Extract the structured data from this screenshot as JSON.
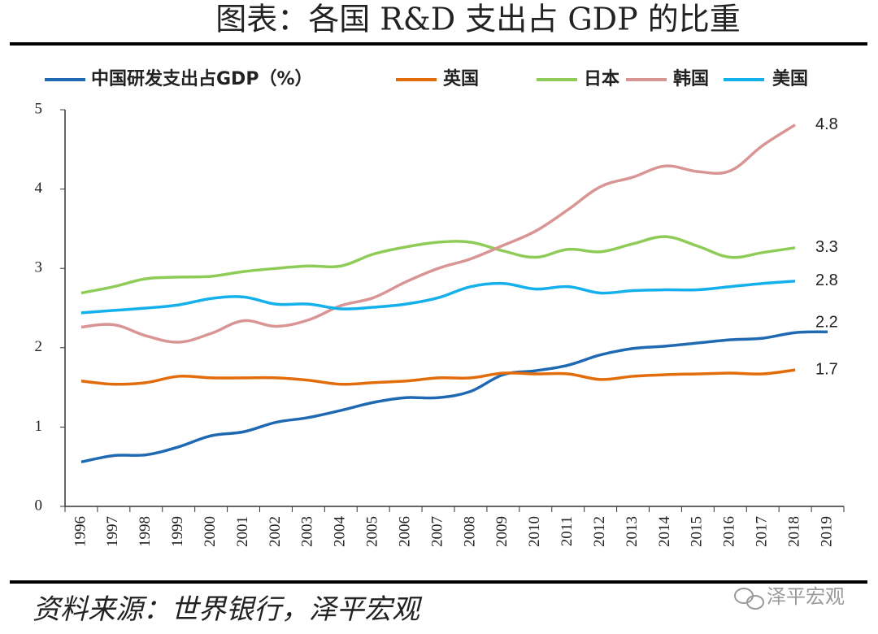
{
  "chart_data": {
    "type": "line",
    "title": "图表：各国 R&D 支出占 GDP 的比重",
    "categories": [
      "1996",
      "1997",
      "1998",
      "1999",
      "2000",
      "2001",
      "2002",
      "2003",
      "2004",
      "2005",
      "2006",
      "2007",
      "2008",
      "2009",
      "2010",
      "2011",
      "2012",
      "2013",
      "2014",
      "2015",
      "2016",
      "2017",
      "2018",
      "2019"
    ],
    "series": [
      {
        "name": "中国研发支出占GDP（%）",
        "color": "#1f69b3",
        "values": [
          0.56,
          0.64,
          0.65,
          0.75,
          0.89,
          0.94,
          1.06,
          1.12,
          1.21,
          1.31,
          1.37,
          1.37,
          1.45,
          1.66,
          1.71,
          1.78,
          1.91,
          1.99,
          2.02,
          2.06,
          2.1,
          2.12,
          2.19,
          2.2
        ],
        "value_labels": [
          null,
          null,
          null,
          null,
          null,
          null,
          null,
          null,
          null,
          null,
          null,
          null,
          null,
          null,
          null,
          null,
          null,
          null,
          null,
          null,
          null,
          null,
          null,
          "2.2"
        ]
      },
      {
        "name": "英国",
        "color": "#e36c0a",
        "values": [
          1.58,
          1.54,
          1.56,
          1.64,
          1.62,
          1.62,
          1.62,
          1.59,
          1.54,
          1.56,
          1.58,
          1.62,
          1.62,
          1.68,
          1.67,
          1.67,
          1.6,
          1.64,
          1.66,
          1.67,
          1.68,
          1.67,
          1.72,
          null
        ],
        "value_labels": [
          null,
          null,
          null,
          null,
          null,
          null,
          null,
          null,
          null,
          null,
          null,
          null,
          null,
          null,
          null,
          null,
          null,
          null,
          null,
          null,
          null,
          null,
          "1.7",
          null
        ]
      },
      {
        "name": "日本",
        "color": "#8fcc57",
        "values": [
          2.69,
          2.77,
          2.87,
          2.89,
          2.9,
          2.96,
          3.0,
          3.03,
          3.03,
          3.18,
          3.27,
          3.33,
          3.33,
          3.22,
          3.14,
          3.24,
          3.21,
          3.31,
          3.4,
          3.28,
          3.14,
          3.2,
          3.26,
          null
        ],
        "value_labels": [
          null,
          null,
          null,
          null,
          null,
          null,
          null,
          null,
          null,
          null,
          null,
          null,
          null,
          null,
          null,
          null,
          null,
          null,
          null,
          null,
          null,
          null,
          "3.3",
          null
        ]
      },
      {
        "name": "韩国",
        "color": "#d99594",
        "values": [
          2.26,
          2.29,
          2.15,
          2.07,
          2.18,
          2.34,
          2.27,
          2.35,
          2.53,
          2.63,
          2.83,
          3.0,
          3.12,
          3.29,
          3.47,
          3.74,
          4.03,
          4.15,
          4.29,
          4.22,
          4.23,
          4.55,
          4.81,
          null
        ],
        "value_labels": [
          null,
          null,
          null,
          null,
          null,
          null,
          null,
          null,
          null,
          null,
          null,
          null,
          null,
          null,
          null,
          null,
          null,
          null,
          null,
          null,
          null,
          null,
          "4.8",
          null
        ]
      },
      {
        "name": "美国",
        "color": "#13b0ec",
        "values": [
          2.44,
          2.47,
          2.5,
          2.54,
          2.62,
          2.64,
          2.55,
          2.55,
          2.49,
          2.51,
          2.55,
          2.63,
          2.77,
          2.81,
          2.74,
          2.77,
          2.69,
          2.72,
          2.73,
          2.73,
          2.77,
          2.81,
          2.84,
          null
        ],
        "value_labels": [
          null,
          null,
          null,
          null,
          null,
          null,
          null,
          null,
          null,
          null,
          null,
          null,
          null,
          null,
          null,
          null,
          null,
          null,
          null,
          null,
          null,
          null,
          "2.8",
          null
        ]
      }
    ],
    "ylim": [
      0,
      5
    ],
    "yticks": [
      0,
      1,
      2,
      3,
      4,
      5
    ],
    "legend": "top",
    "source": "资料来源：世界银行，泽平宏观",
    "watermark": "泽平宏观"
  }
}
